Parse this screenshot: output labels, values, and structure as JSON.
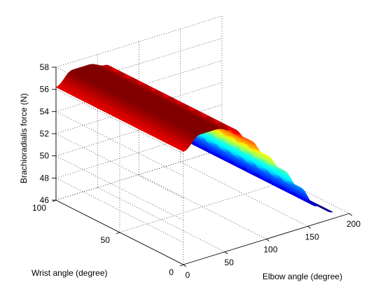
{
  "chart_data": {
    "type": "surface",
    "title": "",
    "xlabel": "Elbow angle (degree)",
    "ylabel": "Wrist angle (degree)",
    "zlabel": "Brachioradialis force (N)",
    "xlim": [
      0,
      200
    ],
    "ylim": [
      0,
      100
    ],
    "zlim": [
      46,
      58
    ],
    "x_ticks": [
      "0",
      "50",
      "100",
      "150",
      "200"
    ],
    "y_ticks": [
      "0",
      "50",
      "100"
    ],
    "z_ticks": [
      "46",
      "48",
      "50",
      "52",
      "54",
      "56",
      "58"
    ],
    "grid": true,
    "colormap": "jet",
    "surface_domain": {
      "elbow_angle": [
        0,
        180
      ],
      "wrist_angle": [
        0,
        100
      ]
    },
    "force_profile_vs_elbow_angle": {
      "elbow_angle": [
        0,
        20,
        40,
        60,
        80,
        100,
        120,
        140,
        160,
        180
      ],
      "force": [
        56.2,
        57.3,
        57.3,
        56.8,
        55.3,
        53.5,
        51.7,
        49.7,
        47.6,
        46.6
      ]
    },
    "force_profile_note_wrist": "force constant along wrist angle"
  }
}
